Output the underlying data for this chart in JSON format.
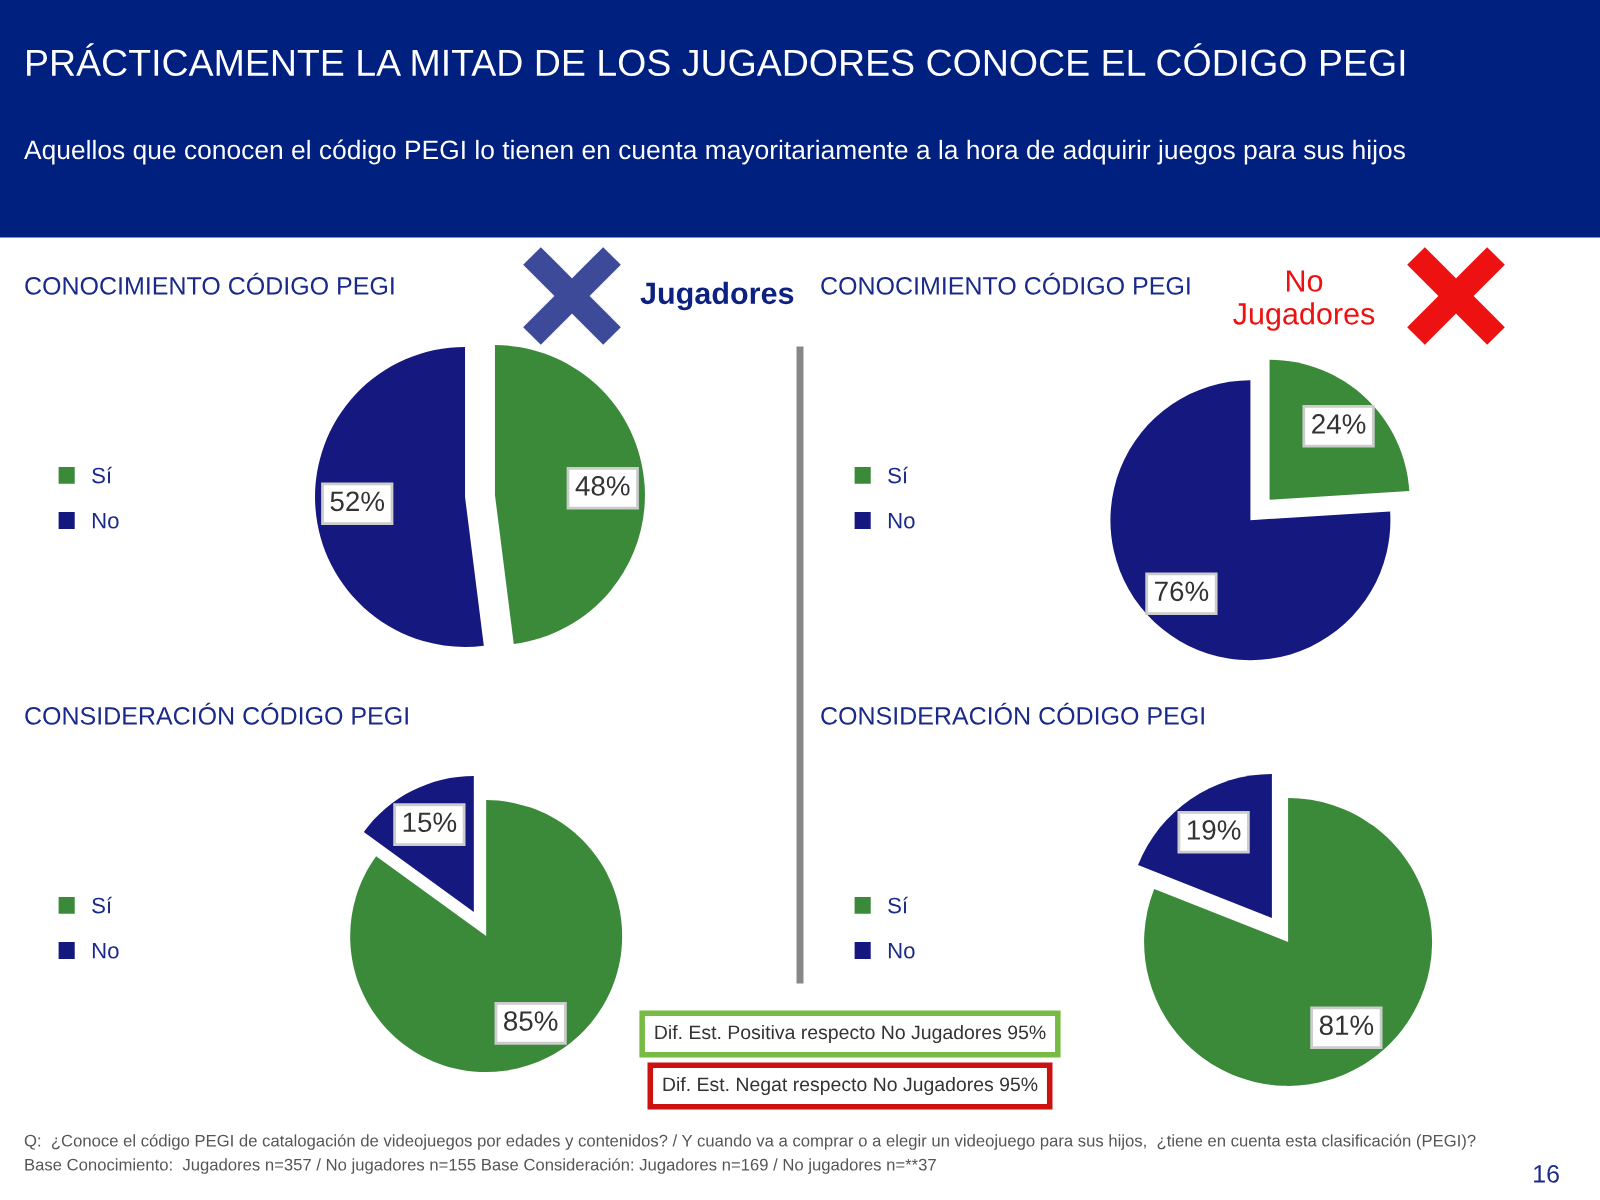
{
  "chart_data": [
    {
      "type": "pie",
      "title": "CONOCIMIENTO CÓDIGO PEGI",
      "categories": [
        "Sí",
        "No"
      ],
      "values": [
        48,
        52
      ],
      "colors": [
        "#3a8a3a",
        "#15197f"
      ],
      "value_labels": [
        "48%",
        "52%"
      ],
      "legend": "left"
    },
    {
      "type": "pie",
      "title": "CONOCIMIENTO CÓDIGO PEGI",
      "categories": [
        "Sí",
        "No"
      ],
      "values": [
        24,
        76
      ],
      "colors": [
        "#3a8a3a",
        "#15197f"
      ],
      "value_labels": [
        "24%",
        "76%"
      ],
      "legend": "left"
    },
    {
      "type": "pie",
      "title": "CONSIDERACIÓN CÓDIGO PEGI",
      "categories": [
        "Sí",
        "No"
      ],
      "values": [
        85,
        15
      ],
      "colors": [
        "#3a8a3a",
        "#15197f"
      ],
      "value_labels": [
        "85%",
        "15%"
      ],
      "legend": "left"
    },
    {
      "type": "pie",
      "title": "CONSIDERACIÓN CÓDIGO PEGI",
      "categories": [
        "Sí",
        "No"
      ],
      "values": [
        81,
        19
      ],
      "colors": [
        "#3a8a3a",
        "#15197f"
      ],
      "value_labels": [
        "81%",
        "19%"
      ],
      "legend": "left"
    },
    {
      "type": "other",
      "title": "PRÁCTICAMENTE LA MITAD DE LOS JUGADORES CONOCE EL CÓDIGO PEGI",
      "subtitle": "Aquellos que conocen el código PEGI lo tienen en cuenta mayoritariamente a la hora de adquirir juegos para sus hijos",
      "annotations": [
        "Jugadores",
        "No\nJugadores",
        "Dif. Est. Positiva respecto No Jugadores 95%",
        "Dif. Est. Negat respecto No Jugadores 95%",
        "Q:  ¿Conoce el código PEGI de catalogación de videojuegos por edades y contenidos? / Y cuando va a comprar o a elegir un videojuego para sus hijos,  ¿tiene en cuenta esta clasificación (PEGI)?",
        "Base Conocimiento:  Jugadores n=357 / No jugadores n=155 Base Consideración: Jugadores n=169 / No jugadores n=**37",
        "16"
      ]
    }
  ]
}
